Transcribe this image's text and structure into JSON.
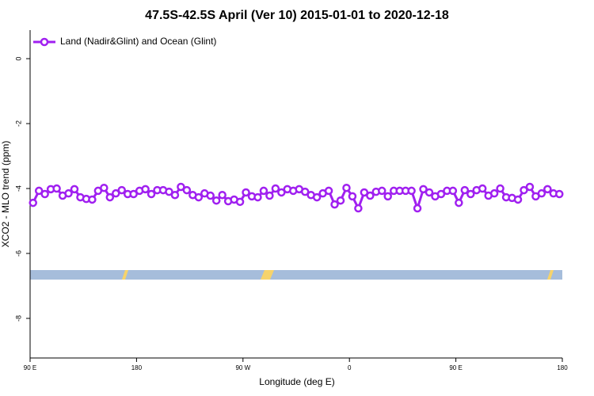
{
  "chart_data": {
    "type": "line",
    "title": "47.5S-42.5S April (Ver 10)   2015-01-01 to 2020-12-18",
    "x_label": "Longitude (deg E)",
    "y_label": "XCO2 - MLO trend (ppm)",
    "xlim": [
      90,
      540
    ],
    "xticks": [
      {
        "value": 90,
        "label": "90 E"
      },
      {
        "value": 180,
        "label": "180"
      },
      {
        "value": 270,
        "label": "90 W"
      },
      {
        "value": 360,
        "label": "0"
      },
      {
        "value": 450,
        "label": "90 E"
      },
      {
        "value": 540,
        "label": "180"
      }
    ],
    "ylim": [
      -9.22,
      0.88
    ],
    "yticks": [
      0,
      -2,
      -4,
      -6,
      -8
    ],
    "legend": "top-left",
    "x": [
      92.5,
      97.5,
      102.5,
      107.5,
      112.5,
      117.5,
      122.5,
      127.5,
      132.5,
      137.5,
      142.5,
      147.5,
      152.5,
      157.5,
      162.5,
      167.5,
      172.5,
      177.5,
      182.5,
      187.5,
      192.5,
      197.5,
      202.5,
      207.5,
      212.5,
      217.5,
      222.5,
      227.5,
      232.5,
      237.5,
      242.5,
      247.5,
      252.5,
      257.5,
      262.5,
      267.5,
      272.5,
      277.5,
      282.5,
      287.5,
      292.5,
      297.5,
      302.5,
      307.5,
      312.5,
      317.5,
      322.5,
      327.5,
      332.5,
      337.5,
      342.5,
      347.5,
      352.5,
      357.5,
      362.5,
      367.5,
      372.5,
      377.5,
      382.5,
      387.5,
      392.5,
      397.5,
      402.5,
      407.5,
      412.5,
      417.5,
      422.5,
      427.5,
      432.5,
      437.5,
      442.5,
      447.5,
      452.5,
      457.5,
      462.5,
      467.5,
      472.5,
      477.5,
      482.5,
      487.5,
      492.5,
      497.5,
      502.5,
      507.5,
      512.5,
      517.5,
      522.5,
      527.5,
      532.5,
      537.5
    ],
    "series": [
      {
        "name": "Land (Nadir&Glint) and Ocean (Glint)",
        "color": "#a020f0",
        "values": [
          -4.44,
          -4.07,
          -4.17,
          -4.02,
          -4.0,
          -4.22,
          -4.15,
          -4.02,
          -4.27,
          -4.32,
          -4.34,
          -4.07,
          -3.98,
          -4.27,
          -4.15,
          -4.05,
          -4.17,
          -4.17,
          -4.07,
          -4.02,
          -4.17,
          -4.05,
          -4.05,
          -4.1,
          -4.2,
          -3.95,
          -4.05,
          -4.2,
          -4.27,
          -4.15,
          -4.22,
          -4.37,
          -4.2,
          -4.39,
          -4.34,
          -4.41,
          -4.12,
          -4.24,
          -4.27,
          -4.07,
          -4.22,
          -4.0,
          -4.12,
          -4.02,
          -4.07,
          -4.02,
          -4.1,
          -4.2,
          -4.27,
          -4.15,
          -4.07,
          -4.49,
          -4.37,
          -3.98,
          -4.24,
          -4.61,
          -4.12,
          -4.22,
          -4.1,
          -4.07,
          -4.24,
          -4.07,
          -4.07,
          -4.07,
          -4.07,
          -4.61,
          -4.02,
          -4.12,
          -4.24,
          -4.17,
          -4.07,
          -4.07,
          -4.44,
          -4.05,
          -4.17,
          -4.05,
          -4.0,
          -4.22,
          -4.15,
          -4.0,
          -4.27,
          -4.29,
          -4.34,
          -4.05,
          -3.95,
          -4.24,
          -4.15,
          -4.02,
          -4.15,
          -4.17
        ]
      }
    ]
  }
}
